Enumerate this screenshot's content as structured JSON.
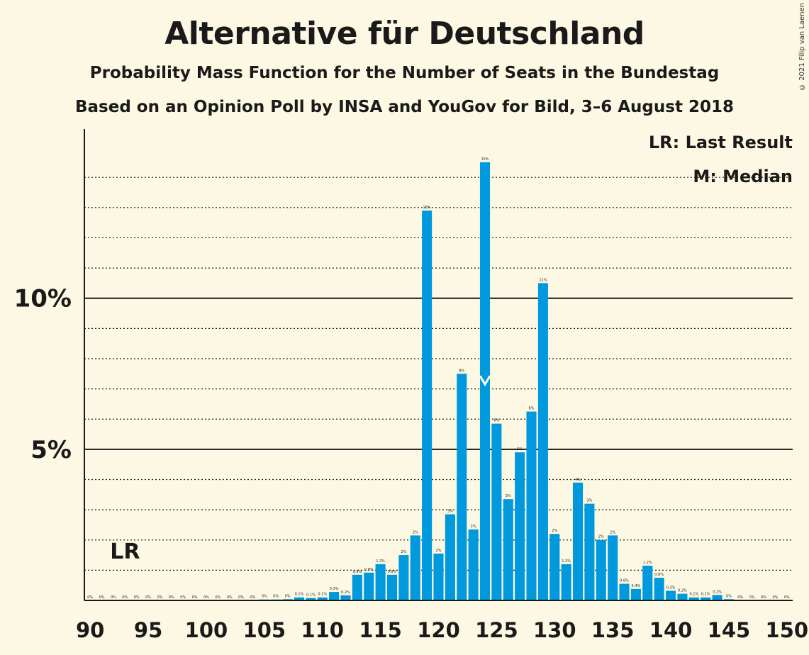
{
  "title": "Alternative für Deutschland",
  "subtitle": "Probability Mass Function for the Number of Seats in the Bundestag",
  "subtitle2": "Based on an Opinion Poll by INSA and YouGov for Bild, 3–6 August 2018",
  "copyright": "© 2021 Filip van Laenen",
  "colors": {
    "bar": "#0099dd",
    "background": "#fdf8e3",
    "text": "#1a1a1a"
  },
  "chart_data": {
    "type": "bar",
    "x": [
      90,
      91,
      92,
      93,
      94,
      95,
      96,
      97,
      98,
      99,
      100,
      101,
      102,
      103,
      104,
      105,
      106,
      107,
      108,
      109,
      110,
      111,
      112,
      113,
      114,
      115,
      116,
      117,
      118,
      119,
      120,
      121,
      122,
      123,
      124,
      125,
      126,
      127,
      128,
      129,
      130,
      131,
      132,
      133,
      134,
      135,
      136,
      137,
      138,
      139,
      140,
      141,
      142,
      143,
      144,
      145,
      146,
      147,
      148,
      149,
      150
    ],
    "values": [
      0,
      0,
      0,
      0,
      0,
      0,
      0,
      0,
      0,
      0,
      0,
      0,
      0,
      0,
      0,
      0.03,
      0.03,
      0.04,
      0.1,
      0.08,
      0.1,
      0.28,
      0.17,
      0.85,
      0.92,
      1.2,
      0.85,
      1.5,
      2.15,
      12.9,
      1.55,
      2.85,
      7.5,
      2.35,
      14.5,
      5.85,
      3.35,
      4.9,
      6.25,
      10.5,
      2.2,
      1.2,
      3.9,
      3.2,
      2.0,
      2.15,
      0.55,
      0.38,
      1.15,
      0.75,
      0.32,
      0.22,
      0.1,
      0.1,
      0.18,
      0.04,
      0,
      0,
      0,
      0,
      0
    ],
    "data_labels": [
      "0%",
      "0%",
      "0%",
      "0%",
      "0%",
      "0%",
      "0%",
      "0%",
      "0%",
      "0%",
      "0%",
      "0%",
      "0%",
      "0%",
      "0%",
      "0%",
      "0%",
      "0%",
      "0.1%",
      "0.1%",
      "0.1%",
      "0.3%",
      "0.2%",
      "0.9%",
      "0.9%",
      "1.2%",
      "0.9%",
      "2%",
      "2%",
      "13%",
      "2%",
      "3%",
      "8%",
      "2%",
      "15%",
      "6%",
      "3%",
      "5%",
      "6%",
      "11%",
      "2%",
      "1.2%",
      "4%",
      "3%",
      "2%",
      "2%",
      "0.6%",
      "0.4%",
      "1.2%",
      "0.8%",
      "0.3%",
      "0.2%",
      "0.1%",
      "0.1%",
      "0.2%",
      "0%",
      "0%",
      "0%",
      "0%",
      "0%",
      "0%"
    ],
    "x_ticks": [
      90,
      95,
      100,
      105,
      110,
      115,
      120,
      125,
      130,
      135,
      140,
      145,
      150
    ],
    "x_tick_labels": [
      "90",
      "95",
      "100",
      "105",
      "110",
      "115",
      "120",
      "125",
      "130",
      "135",
      "140",
      "145",
      "150"
    ],
    "y_ticks": [
      5,
      10
    ],
    "y_tick_labels": [
      "5%",
      "10%"
    ],
    "ylim": [
      0,
      15.6
    ],
    "xlim": [
      89.5,
      150.5
    ],
    "grid": true,
    "median": 124,
    "last_result": 93,
    "last_result_label": "LR",
    "legend": [
      "LR: Last Result",
      "M: Median"
    ],
    "legend_position": "top-right"
  }
}
